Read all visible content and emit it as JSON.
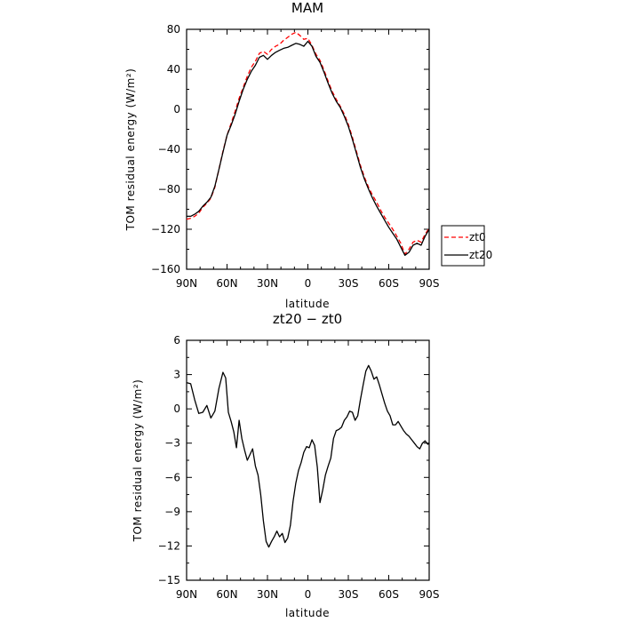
{
  "chart_data": [
    {
      "type": "line",
      "title": "MAM",
      "xlabel": "latitude",
      "ylabel": "TOM residual energy (W/m²)",
      "xlim": [
        90,
        -90
      ],
      "ylim": [
        -160,
        80
      ],
      "x_ticks": [
        90,
        60,
        30,
        0,
        -30,
        -60,
        -90
      ],
      "x_tick_labels": [
        "90N",
        "60N",
        "30N",
        "0",
        "30S",
        "60S",
        "90S"
      ],
      "y_ticks": [
        -160,
        -120,
        -80,
        -40,
        0,
        40,
        80
      ],
      "y_tick_labels": [
        "−160",
        "−120",
        "−80",
        "−40",
        "0",
        "40",
        "80"
      ],
      "grid": false,
      "legend": "right",
      "series": [
        {
          "name": "zt0",
          "color": "#ff0000",
          "dash": "dashed",
          "x": [
            90,
            87,
            84,
            81,
            78,
            75,
            72,
            69,
            66,
            63,
            60,
            57,
            54,
            51,
            48,
            45,
            42,
            39,
            36,
            33,
            30,
            27,
            24,
            21,
            18,
            15,
            12,
            9,
            6,
            3,
            0,
            -3,
            -6,
            -9,
            -12,
            -15,
            -18,
            -21,
            -24,
            -27,
            -30,
            -33,
            -36,
            -39,
            -42,
            -45,
            -48,
            -51,
            -54,
            -57,
            -60,
            -63,
            -66,
            -69,
            -72,
            -75,
            -78,
            -81,
            -84,
            -87,
            -90
          ],
          "values": [
            -110,
            -109,
            -107,
            -104,
            -98,
            -94,
            -89,
            -78,
            -60,
            -42,
            -26,
            -14,
            -2,
            11,
            22,
            33,
            42,
            48,
            56,
            58,
            55,
            60,
            63,
            65,
            69,
            72,
            75,
            77,
            74,
            70,
            71,
            64,
            55,
            49,
            39,
            28,
            18,
            10,
            3,
            -5,
            -15,
            -28,
            -42,
            -56,
            -68,
            -78,
            -86,
            -93,
            -101,
            -108,
            -114,
            -120,
            -127,
            -134,
            -145,
            -140,
            -133,
            -131,
            -133,
            -125,
            -119
          ]
        },
        {
          "name": "zt20",
          "color": "#000000",
          "dash": "solid",
          "x": [
            90,
            87,
            84,
            81,
            78,
            75,
            72,
            69,
            66,
            63,
            60,
            57,
            54,
            51,
            48,
            45,
            42,
            39,
            36,
            33,
            30,
            27,
            24,
            21,
            18,
            15,
            12,
            9,
            6,
            3,
            0,
            -3,
            -6,
            -9,
            -12,
            -15,
            -18,
            -21,
            -24,
            -27,
            -30,
            -33,
            -36,
            -39,
            -42,
            -45,
            -48,
            -51,
            -54,
            -57,
            -60,
            -63,
            -66,
            -69,
            -72,
            -75,
            -78,
            -81,
            -84,
            -87,
            -90
          ],
          "values": [
            -107,
            -107,
            -105,
            -102,
            -97,
            -93,
            -88,
            -77,
            -60,
            -43,
            -26,
            -16,
            -5,
            8,
            20,
            30,
            38,
            44,
            52,
            54,
            50,
            54,
            57,
            59,
            61,
            62,
            64,
            66,
            65,
            63,
            68,
            63,
            53,
            47,
            37,
            26,
            16,
            8,
            2,
            -7,
            -17,
            -30,
            -44,
            -58,
            -70,
            -80,
            -89,
            -97,
            -104,
            -111,
            -118,
            -124,
            -130,
            -138,
            -146,
            -143,
            -136,
            -134,
            -136,
            -127,
            -120
          ]
        }
      ]
    },
    {
      "type": "line",
      "title": "zt20 − zt0",
      "xlabel": "latitude",
      "ylabel": "TOM residual energy (W/m²)",
      "xlim": [
        90,
        -90
      ],
      "ylim": [
        -15,
        6
      ],
      "x_ticks": [
        90,
        60,
        30,
        0,
        -30,
        -60,
        -90
      ],
      "x_tick_labels": [
        "90N",
        "60N",
        "30N",
        "0",
        "30S",
        "60S",
        "90S"
      ],
      "y_ticks": [
        -15,
        -12,
        -9,
        -6,
        -3,
        0,
        3,
        6
      ],
      "y_tick_labels": [
        "−15",
        "−12",
        "−9",
        "−6",
        "−3",
        "0",
        "3",
        "6"
      ],
      "grid": false,
      "series": [
        {
          "color": "#000000",
          "dash": "solid",
          "x": [
            90,
            87,
            84,
            81,
            78,
            75,
            72,
            69,
            66,
            63,
            61,
            59,
            57,
            55,
            53,
            51,
            49,
            47,
            45,
            43,
            41,
            39,
            37,
            35,
            33,
            31,
            29,
            27,
            25,
            23,
            21,
            19,
            17,
            15,
            13,
            11,
            9,
            7,
            5,
            3,
            1,
            -1,
            -3,
            -5,
            -7,
            -9,
            -11,
            -13,
            -15,
            -17,
            -19,
            -21,
            -23,
            -25,
            -27,
            -29,
            -31,
            -33,
            -35,
            -37,
            -39,
            -41,
            -43,
            -45,
            -47,
            -49,
            -51,
            -53,
            -55,
            -57,
            -59,
            -61,
            -63,
            -65,
            -67,
            -69,
            -71,
            -73,
            -75,
            -77,
            -79,
            -81,
            -83,
            -85,
            -87,
            -89,
            -90
          ],
          "values": [
            2.3,
            2.2,
            0.8,
            -0.4,
            -0.3,
            0.3,
            -0.8,
            -0.2,
            1.8,
            3.2,
            2.7,
            -0.3,
            -1.1,
            -2.0,
            -3.4,
            -1.0,
            -2.6,
            -3.6,
            -4.5,
            -4.0,
            -3.5,
            -5.0,
            -5.8,
            -7.5,
            -9.8,
            -11.6,
            -12.1,
            -11.6,
            -11.2,
            -10.7,
            -11.2,
            -10.9,
            -11.7,
            -11.3,
            -10.2,
            -8.1,
            -6.5,
            -5.4,
            -4.7,
            -3.8,
            -3.3,
            -3.4,
            -2.7,
            -3.2,
            -5.1,
            -8.2,
            -7.1,
            -5.8,
            -5.0,
            -4.3,
            -2.6,
            -1.9,
            -1.8,
            -1.6,
            -1.0,
            -0.7,
            -0.2,
            -0.3,
            -1.0,
            -0.6,
            0.8,
            2.1,
            3.3,
            3.8,
            3.3,
            2.6,
            2.8,
            2.1,
            1.3,
            0.5,
            -0.2,
            -0.6,
            -1.4,
            -1.4,
            -1.1,
            -1.5,
            -1.9,
            -2.2,
            -2.4,
            -2.7,
            -3.0,
            -3.3,
            -3.5,
            -3.0,
            -2.8,
            -3.1,
            -3.0
          ]
        }
      ]
    }
  ]
}
